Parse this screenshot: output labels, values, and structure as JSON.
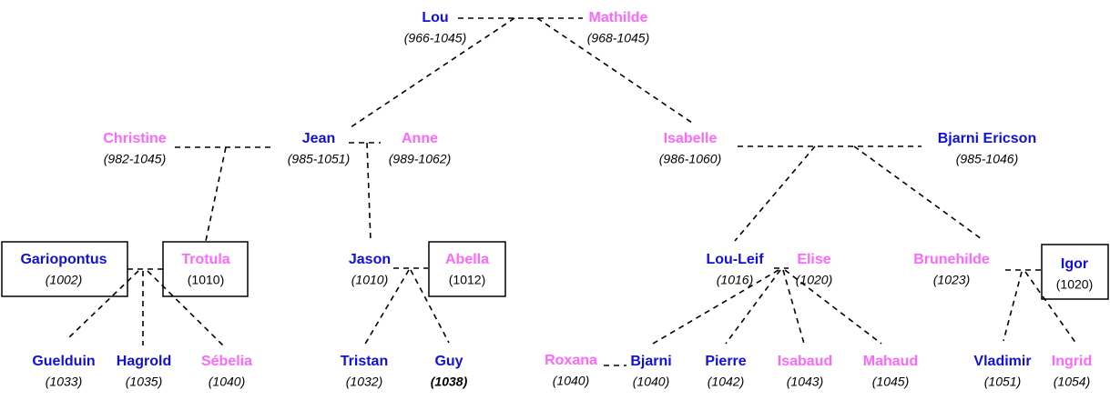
{
  "nodes": [
    {
      "name": "Lou",
      "dates": "(966-1045)"
    },
    {
      "name": "Mathilde",
      "dates": "(968-1045)"
    },
    {
      "name": "Christine",
      "dates": "(982-1045)"
    },
    {
      "name": "Jean",
      "dates": "(985-1051)"
    },
    {
      "name": "Anne",
      "dates": "(989-1062)"
    },
    {
      "name": "Isabelle",
      "dates": "(986-1060)"
    },
    {
      "name": "Bjarni Ericson",
      "dates": "(985-1046)"
    },
    {
      "name": "Gariopontus",
      "dates": "(1002)"
    },
    {
      "name": "Trotula",
      "dates": "(1010)"
    },
    {
      "name": "Jason",
      "dates": "(1010)"
    },
    {
      "name": "Abella",
      "dates": "(1012)"
    },
    {
      "name": "Lou-Leif",
      "dates": "(1016)"
    },
    {
      "name": "Elise",
      "dates": "(1020)"
    },
    {
      "name": "Brunehilde",
      "dates": "(1023)"
    },
    {
      "name": "Igor",
      "dates": "(1020)"
    },
    {
      "name": "Guelduin",
      "dates": "(1033)"
    },
    {
      "name": "Hagrold",
      "dates": "(1035)"
    },
    {
      "name": "Sébelia",
      "dates": "(1040)"
    },
    {
      "name": "Tristan",
      "dates": "(1032)"
    },
    {
      "name": "Guy",
      "dates": "(1038)"
    },
    {
      "name": "Roxana",
      "dates": "(1040)"
    },
    {
      "name": "Bjarni",
      "dates": "(1040)"
    },
    {
      "name": "Pierre",
      "dates": "(1042)"
    },
    {
      "name": "Isabaud",
      "dates": "(1043)"
    },
    {
      "name": "Mahaud",
      "dates": "(1045)"
    },
    {
      "name": "Vladimir",
      "dates": "(1051)"
    },
    {
      "name": "Ingrid",
      "dates": "(1054)"
    }
  ]
}
